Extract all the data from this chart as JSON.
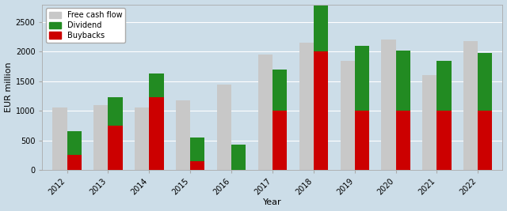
{
  "years": [
    2012,
    2013,
    2014,
    2015,
    2016,
    2017,
    2018,
    2019,
    2020,
    2021,
    2022
  ],
  "free_cash_flow": [
    1050,
    1100,
    1050,
    1175,
    1450,
    1950,
    2150,
    1850,
    2200,
    1600,
    2175
  ],
  "dividend": [
    650,
    1225,
    1625,
    550,
    425,
    1700,
    2775,
    2100,
    2025,
    1850,
    1975
  ],
  "buybacks": [
    250,
    750,
    1225,
    150,
    0,
    1000,
    2000,
    1000,
    1000,
    1000,
    1000
  ],
  "fcf_color": "#c8c8c8",
  "dividend_color": "#228B22",
  "buybacks_color": "#cc0000",
  "ylabel": "EUR million",
  "xlabel": "Year",
  "ylim": [
    0,
    2800
  ],
  "yticks": [
    0,
    500,
    1000,
    1500,
    2000,
    2500
  ],
  "legend_labels": [
    "Free cash flow",
    "Dividend",
    "Buybacks"
  ],
  "bar_width": 0.35,
  "background_color": "#ccdde8",
  "grid_color": "#ffffff",
  "spine_color": "#aaaaaa",
  "tick_fontsize": 7,
  "label_fontsize": 8,
  "legend_fontsize": 7
}
